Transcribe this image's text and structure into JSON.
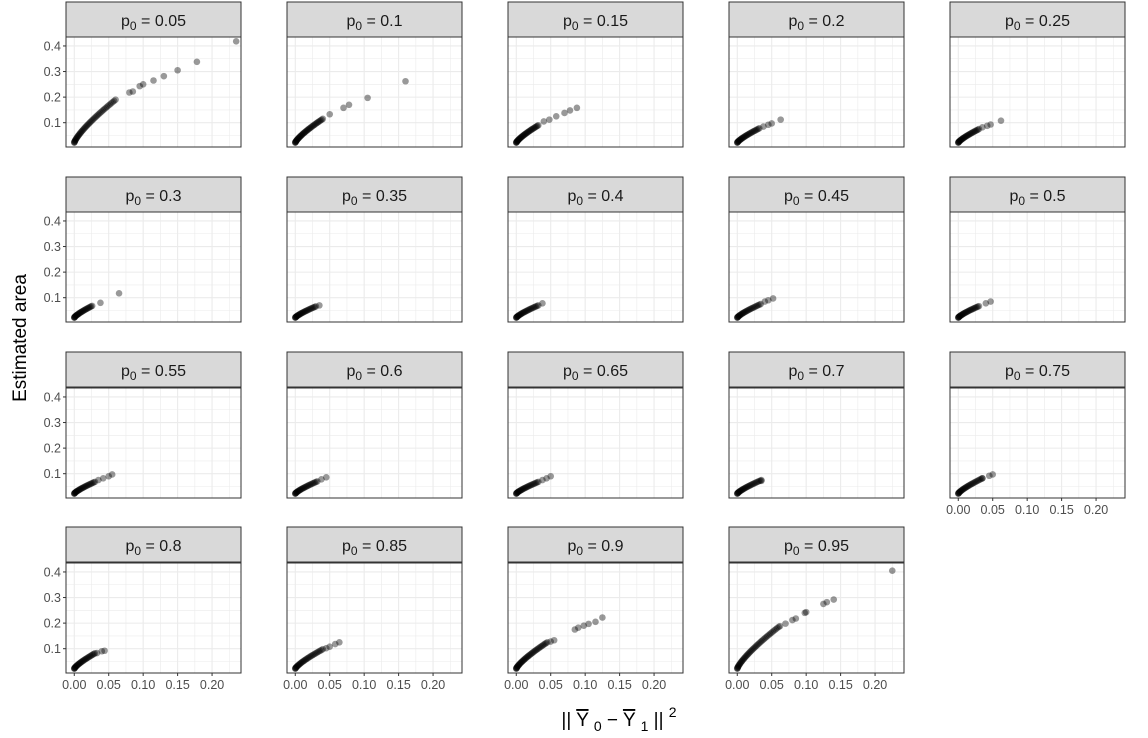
{
  "chart_data": {
    "type": "scatter",
    "ylabel": "Estimated area",
    "xlabel_parts": {
      "open": "||",
      "y0": "Y",
      "sub0": "0",
      "minus": " − ",
      "y1": "Y",
      "sub1": "1",
      "close": "||",
      "sup": "2"
    },
    "facet_label_prefix": "p",
    "facet_label_sub": "0",
    "xlim": [
      -0.012,
      0.242
    ],
    "ylim": [
      0.005,
      0.435
    ],
    "x_ticks": [
      0.0,
      0.05,
      0.1,
      0.15,
      0.2
    ],
    "x_tick_labels": [
      "0.00",
      "0.05",
      "0.10",
      "0.15",
      "0.20"
    ],
    "y_ticks": [
      0.1,
      0.2,
      0.3,
      0.4
    ],
    "y_tick_labels": [
      "0.1",
      "0.2",
      "0.3",
      "0.4"
    ],
    "grid": true,
    "point_color": "#000000",
    "point_opacity": 0.4,
    "strip_fill": "#d9d9d9",
    "grid_color": "#ebebeb",
    "facets": [
      {
        "p0": "0.05",
        "extra": [
          [
            0.08,
            0.218
          ],
          [
            0.085,
            0.222
          ],
          [
            0.095,
            0.243
          ],
          [
            0.1,
            0.25
          ],
          [
            0.115,
            0.265
          ],
          [
            0.13,
            0.282
          ],
          [
            0.15,
            0.305
          ],
          [
            0.178,
            0.338
          ],
          [
            0.235,
            0.418
          ]
        ],
        "end": [
          0.06,
          0.19
        ],
        "n": 45
      },
      {
        "p0": "0.1",
        "extra": [
          [
            0.05,
            0.133
          ],
          [
            0.07,
            0.158
          ],
          [
            0.078,
            0.17
          ],
          [
            0.105,
            0.197
          ],
          [
            0.16,
            0.262
          ]
        ],
        "end": [
          0.04,
          0.115
        ],
        "n": 40
      },
      {
        "p0": "0.15",
        "extra": [
          [
            0.04,
            0.105
          ],
          [
            0.048,
            0.112
          ],
          [
            0.058,
            0.125
          ],
          [
            0.07,
            0.138
          ],
          [
            0.078,
            0.148
          ],
          [
            0.088,
            0.158
          ]
        ],
        "end": [
          0.032,
          0.09
        ],
        "n": 35
      },
      {
        "p0": "0.2",
        "extra": [
          [
            0.038,
            0.085
          ],
          [
            0.045,
            0.092
          ],
          [
            0.05,
            0.097
          ],
          [
            0.063,
            0.112
          ]
        ],
        "end": [
          0.032,
          0.078
        ],
        "n": 30
      },
      {
        "p0": "0.25",
        "extra": [
          [
            0.035,
            0.082
          ],
          [
            0.042,
            0.088
          ],
          [
            0.047,
            0.093
          ],
          [
            0.062,
            0.108
          ]
        ],
        "end": [
          0.03,
          0.075
        ],
        "n": 30
      },
      {
        "p0": "0.3",
        "extra": [
          [
            0.038,
            0.08
          ],
          [
            0.065,
            0.117
          ]
        ],
        "end": [
          0.026,
          0.068
        ],
        "n": 28
      },
      {
        "p0": "0.35",
        "extra": [
          [
            0.035,
            0.07
          ]
        ],
        "end": [
          0.03,
          0.066
        ],
        "n": 28
      },
      {
        "p0": "0.4",
        "extra": [
          [
            0.038,
            0.078
          ]
        ],
        "end": [
          0.032,
          0.07
        ],
        "n": 28
      },
      {
        "p0": "0.45",
        "extra": [
          [
            0.04,
            0.085
          ],
          [
            0.045,
            0.09
          ],
          [
            0.052,
            0.097
          ]
        ],
        "end": [
          0.034,
          0.075
        ],
        "n": 28
      },
      {
        "p0": "0.5",
        "extra": [
          [
            0.04,
            0.078
          ],
          [
            0.047,
            0.085
          ]
        ],
        "end": [
          0.03,
          0.067
        ],
        "n": 28
      },
      {
        "p0": "0.55",
        "extra": [
          [
            0.035,
            0.075
          ],
          [
            0.042,
            0.082
          ],
          [
            0.05,
            0.09
          ],
          [
            0.055,
            0.097
          ]
        ],
        "end": [
          0.03,
          0.068
        ],
        "n": 28
      },
      {
        "p0": "0.6",
        "extra": [
          [
            0.038,
            0.078
          ],
          [
            0.045,
            0.086
          ]
        ],
        "end": [
          0.032,
          0.07
        ],
        "n": 28
      },
      {
        "p0": "0.65",
        "extra": [
          [
            0.038,
            0.075
          ],
          [
            0.044,
            0.082
          ],
          [
            0.05,
            0.09
          ]
        ],
        "end": [
          0.032,
          0.068
        ],
        "n": 28
      },
      {
        "p0": "0.7",
        "extra": [
          [
            0.035,
            0.072
          ]
        ],
        "end": [
          0.035,
          0.075
        ],
        "n": 30
      },
      {
        "p0": "0.75",
        "extra": [
          [
            0.035,
            0.082
          ],
          [
            0.045,
            0.092
          ],
          [
            0.05,
            0.097
          ]
        ],
        "end": [
          0.035,
          0.082
        ],
        "n": 30
      },
      {
        "p0": "0.8",
        "extra": [
          [
            0.033,
            0.083
          ],
          [
            0.04,
            0.09
          ],
          [
            0.044,
            0.092
          ]
        ],
        "end": [
          0.03,
          0.082
        ],
        "n": 30
      },
      {
        "p0": "0.85",
        "extra": [
          [
            0.045,
            0.102
          ],
          [
            0.05,
            0.108
          ],
          [
            0.058,
            0.118
          ],
          [
            0.064,
            0.125
          ]
        ],
        "end": [
          0.04,
          0.098
        ],
        "n": 32
      },
      {
        "p0": "0.9",
        "extra": [
          [
            0.05,
            0.128
          ],
          [
            0.055,
            0.133
          ],
          [
            0.085,
            0.175
          ],
          [
            0.09,
            0.182
          ],
          [
            0.098,
            0.19
          ],
          [
            0.105,
            0.197
          ],
          [
            0.115,
            0.205
          ],
          [
            0.125,
            0.222
          ]
        ],
        "end": [
          0.045,
          0.125
        ],
        "n": 40
      },
      {
        "p0": "0.95",
        "extra": [
          [
            0.062,
            0.188
          ],
          [
            0.07,
            0.198
          ],
          [
            0.08,
            0.212
          ],
          [
            0.085,
            0.218
          ],
          [
            0.098,
            0.24
          ],
          [
            0.1,
            0.243
          ],
          [
            0.125,
            0.275
          ],
          [
            0.13,
            0.282
          ],
          [
            0.14,
            0.292
          ],
          [
            0.225,
            0.405
          ]
        ],
        "end": [
          0.06,
          0.185
        ],
        "n": 45
      }
    ]
  }
}
